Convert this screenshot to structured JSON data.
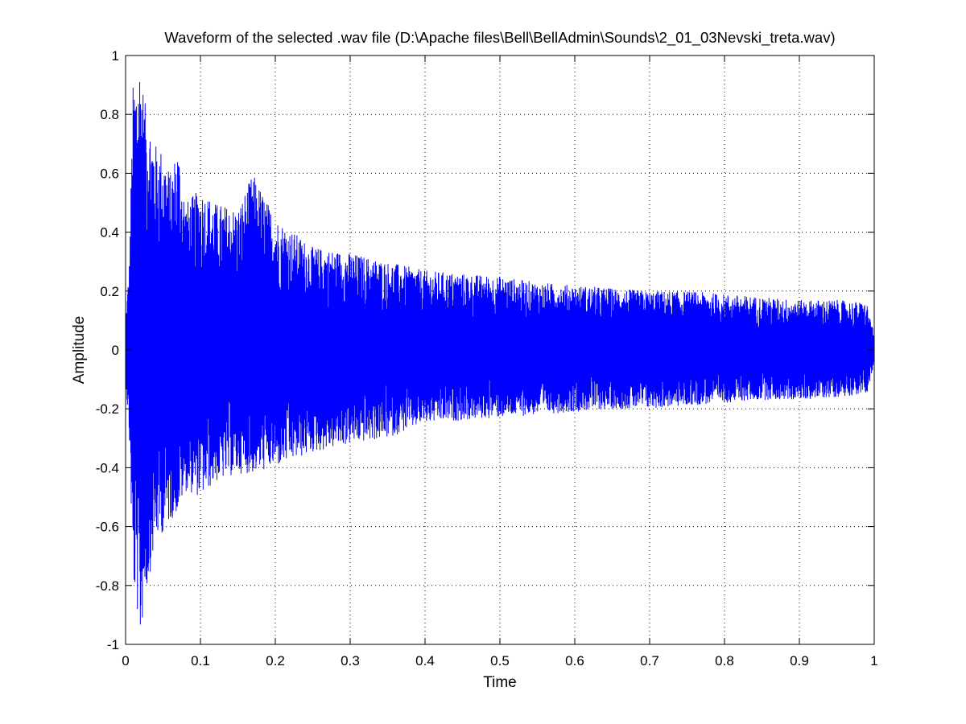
{
  "chart_data": {
    "type": "line",
    "title": "Waveform of the selected .wav file (D:\\Apache files\\Bell\\BellAdmin\\Sounds\\2_01_03Nevski_treta.wav)",
    "xlabel": "Time",
    "ylabel": "Amplitude",
    "xlim": [
      0,
      1
    ],
    "ylim": [
      -1,
      1
    ],
    "grid": true,
    "grid_style": "dotted",
    "x_ticks": [
      0,
      0.1,
      0.2,
      0.3,
      0.4,
      0.5,
      0.6,
      0.7,
      0.8,
      0.9,
      1
    ],
    "x_tick_labels": [
      "0",
      "0.1",
      "0.2",
      "0.3",
      "0.4",
      "0.5",
      "0.6",
      "0.7",
      "0.8",
      "0.9",
      "1"
    ],
    "y_ticks": [
      1,
      0.8,
      0.6,
      0.4,
      0.2,
      0,
      -0.2,
      -0.4,
      -0.6,
      -0.8,
      -1
    ],
    "y_tick_labels": [
      "1",
      "0.8",
      "0.6",
      "0.4",
      "0.2",
      "0",
      "-0.2",
      "-0.4",
      "-0.6",
      "-0.8",
      "-1"
    ],
    "series": [
      {
        "color": "#0000ff",
        "x": [
          0.0,
          0.005,
          0.01,
          0.015,
          0.02,
          0.025,
          0.03,
          0.04,
          0.05,
          0.06,
          0.07,
          0.08,
          0.1,
          0.12,
          0.15,
          0.17,
          0.2,
          0.25,
          0.3,
          0.35,
          0.4,
          0.45,
          0.5,
          0.55,
          0.6,
          0.65,
          0.7,
          0.75,
          0.8,
          0.85,
          0.9,
          0.95,
          0.99,
          1.0
        ],
        "upper": [
          0.1,
          0.3,
          0.9,
          0.95,
          1.0,
          0.85,
          0.8,
          0.7,
          0.68,
          0.6,
          0.7,
          0.5,
          0.55,
          0.5,
          0.48,
          0.6,
          0.45,
          0.35,
          0.33,
          0.3,
          0.27,
          0.26,
          0.25,
          0.23,
          0.22,
          0.21,
          0.2,
          0.2,
          0.19,
          0.18,
          0.17,
          0.17,
          0.16,
          0.05
        ],
        "lower": [
          -0.1,
          -0.3,
          -0.8,
          -0.88,
          -1.0,
          -0.85,
          -0.8,
          -0.65,
          -0.62,
          -0.58,
          -0.55,
          -0.48,
          -0.5,
          -0.45,
          -0.42,
          -0.42,
          -0.4,
          -0.35,
          -0.32,
          -0.3,
          -0.25,
          -0.24,
          -0.23,
          -0.22,
          -0.21,
          -0.2,
          -0.2,
          -0.19,
          -0.18,
          -0.17,
          -0.17,
          -0.16,
          -0.15,
          -0.05
        ]
      }
    ]
  }
}
